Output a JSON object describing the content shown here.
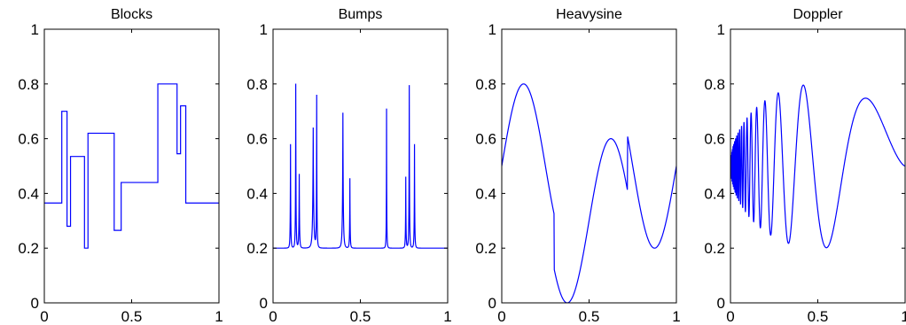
{
  "line_color": "#0000ff",
  "chart_data": [
    {
      "type": "line",
      "title": "Blocks",
      "xlim": [
        0,
        1
      ],
      "ylim": [
        0,
        1
      ],
      "xticks": [
        "0",
        "0.5",
        "1"
      ],
      "yticks": [
        "0",
        "0.2",
        "0.4",
        "0.6",
        "0.8",
        "1"
      ],
      "grid": false,
      "step": true,
      "series": [
        {
          "x": [
            0,
            0.1,
            0.13,
            0.15,
            0.23,
            0.25,
            0.4,
            0.44,
            0.65,
            0.76,
            0.78,
            0.81,
            1.0
          ],
          "y": [
            0.365,
            0.7,
            0.28,
            0.535,
            0.2,
            0.62,
            0.265,
            0.44,
            0.8,
            0.545,
            0.72,
            0.365,
            0.365
          ]
        }
      ]
    },
    {
      "type": "line",
      "title": "Bumps",
      "xlim": [
        0,
        1
      ],
      "ylim": [
        0,
        1
      ],
      "xticks": [
        "0",
        "0.5",
        "1"
      ],
      "yticks": [
        "0",
        "0.2",
        "0.4",
        "0.6",
        "0.8",
        "1"
      ],
      "grid": false,
      "baseline": 0.2,
      "peaks": [
        {
          "pos": 0.1,
          "y": 0.58,
          "width": 0.005
        },
        {
          "pos": 0.13,
          "y": 0.8,
          "width": 0.005
        },
        {
          "pos": 0.15,
          "y": 0.47,
          "width": 0.006
        },
        {
          "pos": 0.23,
          "y": 0.64,
          "width": 0.01
        },
        {
          "pos": 0.25,
          "y": 0.755,
          "width": 0.005
        },
        {
          "pos": 0.4,
          "y": 0.695,
          "width": 0.008
        },
        {
          "pos": 0.44,
          "y": 0.455,
          "width": 0.005
        },
        {
          "pos": 0.65,
          "y": 0.71,
          "width": 0.004
        },
        {
          "pos": 0.76,
          "y": 0.46,
          "width": 0.005
        },
        {
          "pos": 0.78,
          "y": 0.795,
          "width": 0.005
        },
        {
          "pos": 0.81,
          "y": 0.58,
          "width": 0.005
        }
      ]
    },
    {
      "type": "line",
      "title": "Heavysine",
      "xlim": [
        0,
        1
      ],
      "ylim": [
        0,
        1
      ],
      "xticks": [
        "0",
        "0.5",
        "1"
      ],
      "yticks": [
        "0",
        "0.2",
        "0.4",
        "0.6",
        "0.8",
        "1"
      ],
      "grid": false,
      "function": "0.5 + 0.3*sin(4*pi*x) - 0.1*sign(x-0.3) - 0.1*sign(0.72-x)"
    },
    {
      "type": "line",
      "title": "Doppler",
      "xlim": [
        0,
        1
      ],
      "ylim": [
        0,
        1
      ],
      "xticks": [
        "0",
        "0.5",
        "1"
      ],
      "yticks": [
        "0",
        "0.2",
        "0.4",
        "0.6",
        "0.8",
        "1"
      ],
      "grid": false,
      "function": "0.5 + 0.6*sqrt(x*(1-x))*sin(2.1*pi/(x+0.05))"
    }
  ]
}
